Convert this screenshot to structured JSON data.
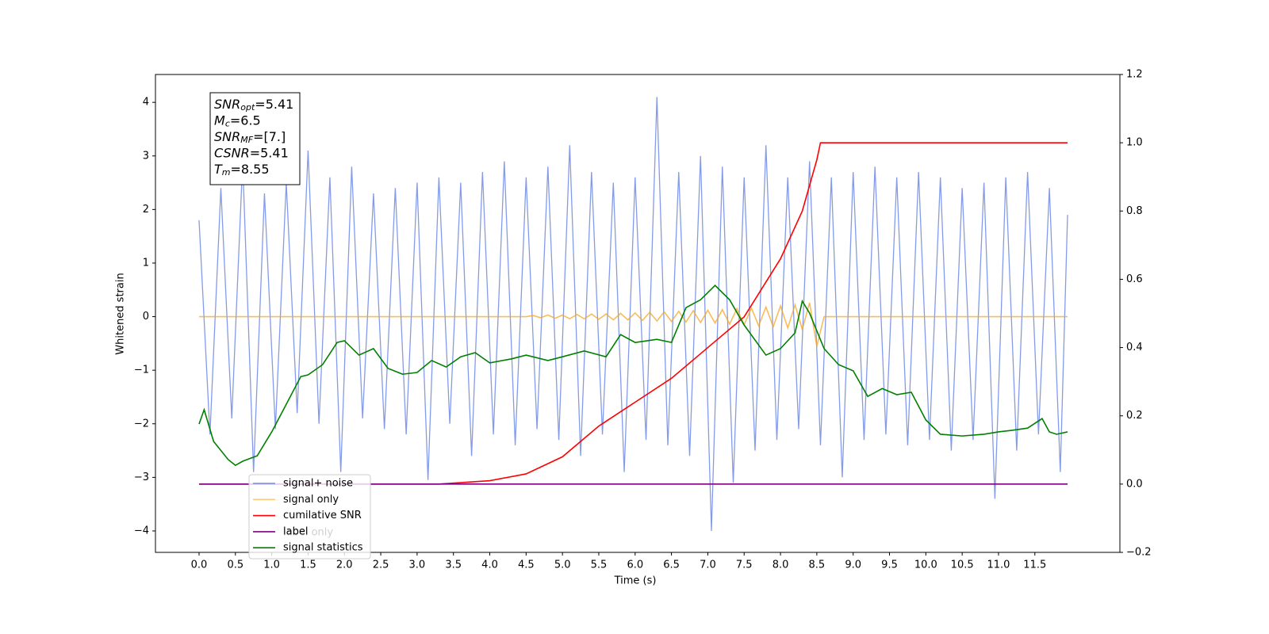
{
  "chart_data": {
    "type": "line",
    "xlabel": "Time (s)",
    "ylabel": "Whitened strain",
    "xlim": [
      -0.6,
      12.67
    ],
    "ylim": [
      -4.4,
      4.52
    ],
    "y2lim": [
      -0.2,
      1.2
    ],
    "xticks": [
      {
        "value": 0,
        "label": "0.0"
      },
      0.5,
      {
        "value": 1,
        "label": "1.0"
      },
      1.5,
      {
        "value": 2,
        "label": "2.0"
      },
      2.5,
      {
        "value": 3,
        "label": "3.0"
      },
      3.5,
      {
        "value": 4,
        "label": "4.0"
      },
      4.5,
      {
        "value": 5,
        "label": "5.0"
      },
      5.5,
      {
        "value": 6,
        "label": "6.0"
      },
      6.5,
      {
        "value": 7,
        "label": "7.0"
      },
      7.5,
      {
        "value": 8,
        "label": "8.0"
      },
      8.5,
      {
        "value": 9,
        "label": "9.0"
      },
      9.5,
      {
        "value": 10,
        "label": "10.0"
      },
      10.5,
      {
        "value": 11,
        "label": "11.0"
      },
      11.5
    ],
    "yticks": [
      {
        "value": -4,
        "label": "−4"
      },
      {
        "value": -3,
        "label": "−3"
      },
      {
        "value": -2,
        "label": "−2"
      },
      {
        "value": -1,
        "label": "−1"
      },
      0,
      1,
      2,
      3,
      4
    ],
    "y2ticks": [
      {
        "value": -0.2,
        "label": "−0.2"
      },
      {
        "value": 0,
        "label": "0.0"
      },
      0.2,
      0.4,
      0.6,
      0.8,
      {
        "value": 1,
        "label": "1.0"
      },
      1.2
    ],
    "grid": false,
    "legend": "lower left",
    "annotations": {
      "stats_box": [
        {
          "symbol": "SNR",
          "sub": "opt",
          "text": "=5.41"
        },
        {
          "symbol": "M",
          "sub": "c",
          "text": "=6.5"
        },
        {
          "symbol": "SNR",
          "sub": "MF",
          "text": "=[7.]"
        },
        {
          "symbol": "CSNR",
          "sub": null,
          "text": "=5.41"
        },
        {
          "symbol": "T",
          "sub": "m",
          "text": "=8.55"
        }
      ],
      "ghost_text": "label only"
    },
    "series": [
      {
        "name": "signal+ noise",
        "color": "#6f8ae6",
        "x": [
          0,
          0.15,
          0.3,
          0.45,
          0.6,
          0.75,
          0.9,
          1.05,
          1.2,
          1.35,
          1.5,
          1.65,
          1.8,
          1.95,
          2.1,
          2.25,
          2.4,
          2.55,
          2.7,
          2.85,
          3,
          3.15,
          3.3,
          3.45,
          3.6,
          3.75,
          3.9,
          4.05,
          4.2,
          4.35,
          4.5,
          4.65,
          4.8,
          4.95,
          5.1,
          5.25,
          5.4,
          5.55,
          5.7,
          5.85,
          6,
          6.15,
          6.3,
          6.45,
          6.6,
          6.75,
          6.9,
          7.05,
          7.2,
          7.35,
          7.5,
          7.65,
          7.8,
          7.95,
          8.1,
          8.25,
          8.4,
          8.55,
          8.7,
          8.85,
          9,
          9.15,
          9.3,
          9.45,
          9.6,
          9.75,
          9.9,
          10.05,
          10.2,
          10.35,
          10.5,
          10.65,
          10.8,
          10.95,
          11.1,
          11.25,
          11.4,
          11.55,
          11.7,
          11.85,
          11.95
        ],
        "values": [
          1.8,
          -2.2,
          2.4,
          -1.9,
          2.9,
          -2.9,
          2.3,
          -2.1,
          2.5,
          -1.8,
          3.1,
          -2.0,
          2.6,
          -2.9,
          2.8,
          -1.9,
          2.3,
          -2.1,
          2.4,
          -2.2,
          2.5,
          -3.05,
          2.6,
          -2.0,
          2.5,
          -2.6,
          2.7,
          -2.2,
          2.9,
          -2.4,
          2.6,
          -2.1,
          2.8,
          -2.3,
          3.2,
          -2.6,
          2.7,
          -2.2,
          2.5,
          -2.9,
          2.6,
          -2.3,
          4.1,
          -2.4,
          2.7,
          -2.6,
          3.0,
          -4.0,
          2.8,
          -3.1,
          2.6,
          -2.5,
          3.2,
          -2.3,
          2.6,
          -2.1,
          2.9,
          -2.4,
          2.6,
          -3.0,
          2.7,
          -2.3,
          2.8,
          -2.2,
          2.6,
          -2.4,
          2.7,
          -2.3,
          2.6,
          -2.5,
          2.4,
          -2.3,
          2.5,
          -3.4,
          2.6,
          -2.5,
          2.7,
          -2.2,
          2.4,
          -2.9,
          1.9
        ]
      },
      {
        "name": "signal only",
        "color": "#f5a623",
        "x": [
          0,
          4.5,
          4.6,
          4.7,
          4.8,
          4.9,
          5,
          5.1,
          5.2,
          5.3,
          5.4,
          5.5,
          5.6,
          5.7,
          5.8,
          5.9,
          6,
          6.1,
          6.2,
          6.3,
          6.4,
          6.5,
          6.6,
          6.7,
          6.8,
          6.9,
          7,
          7.1,
          7.2,
          7.3,
          7.4,
          7.5,
          7.6,
          7.7,
          7.8,
          7.9,
          8,
          8.1,
          8.2,
          8.3,
          8.4,
          8.5,
          8.6,
          11.95
        ],
        "values": [
          0,
          0,
          0.02,
          -0.02,
          0.03,
          -0.03,
          0.03,
          -0.04,
          0.04,
          -0.04,
          0.05,
          -0.05,
          0.05,
          -0.06,
          0.06,
          -0.06,
          0.07,
          -0.07,
          0.08,
          -0.08,
          0.09,
          -0.09,
          0.1,
          -0.1,
          0.11,
          -0.11,
          0.12,
          -0.12,
          0.13,
          -0.14,
          0.15,
          -0.15,
          0.16,
          -0.17,
          0.18,
          -0.19,
          0.2,
          -0.21,
          0.22,
          -0.24,
          0.26,
          -0.55,
          0,
          0
        ]
      },
      {
        "name": "cumilative SNR",
        "color": "#ff0000",
        "axis": "y2",
        "x": [
          0,
          3.3,
          4,
          4.5,
          5,
          5.5,
          6,
          6.5,
          7,
          7.5,
          8,
          8.3,
          8.5,
          8.55,
          11.95
        ],
        "values": [
          0,
          0,
          0.01,
          0.03,
          0.08,
          0.17,
          0.24,
          0.31,
          0.4,
          0.49,
          0.66,
          0.8,
          0.95,
          1.0,
          1.0
        ]
      },
      {
        "name": "label",
        "color": "#800080",
        "axis": "y2",
        "x": [
          0,
          11.95
        ],
        "values": [
          0,
          0
        ]
      },
      {
        "name": "signal statistics",
        "color": "#008000",
        "axis": "y2",
        "x": [
          0,
          0.07,
          0.2,
          0.4,
          0.5,
          0.6,
          0.8,
          1,
          1.2,
          1.4,
          1.5,
          1.7,
          1.9,
          2,
          2.2,
          2.4,
          2.6,
          2.8,
          3,
          3.2,
          3.4,
          3.6,
          3.8,
          4,
          4.3,
          4.5,
          4.8,
          5,
          5.3,
          5.6,
          5.8,
          6,
          6.3,
          6.5,
          6.7,
          6.9,
          7.1,
          7.3,
          7.5,
          7.8,
          8,
          8.2,
          8.3,
          8.4,
          8.6,
          8.8,
          9,
          9.2,
          9.4,
          9.6,
          9.8,
          10,
          10.2,
          10.5,
          10.8,
          11,
          11.2,
          11.4,
          11.6,
          11.7,
          11.8,
          11.95
        ],
        "values": [
          0.176,
          0.218,
          0.125,
          0.072,
          0.055,
          0.067,
          0.083,
          0.153,
          0.234,
          0.315,
          0.32,
          0.35,
          0.415,
          0.42,
          0.378,
          0.397,
          0.339,
          0.322,
          0.327,
          0.362,
          0.343,
          0.373,
          0.385,
          0.355,
          0.367,
          0.378,
          0.362,
          0.373,
          0.39,
          0.373,
          0.438,
          0.415,
          0.424,
          0.415,
          0.517,
          0.54,
          0.582,
          0.54,
          0.466,
          0.378,
          0.397,
          0.443,
          0.536,
          0.501,
          0.397,
          0.35,
          0.332,
          0.257,
          0.28,
          0.262,
          0.269,
          0.188,
          0.146,
          0.141,
          0.146,
          0.153,
          0.158,
          0.164,
          0.192,
          0.153,
          0.146,
          0.153
        ]
      }
    ]
  }
}
